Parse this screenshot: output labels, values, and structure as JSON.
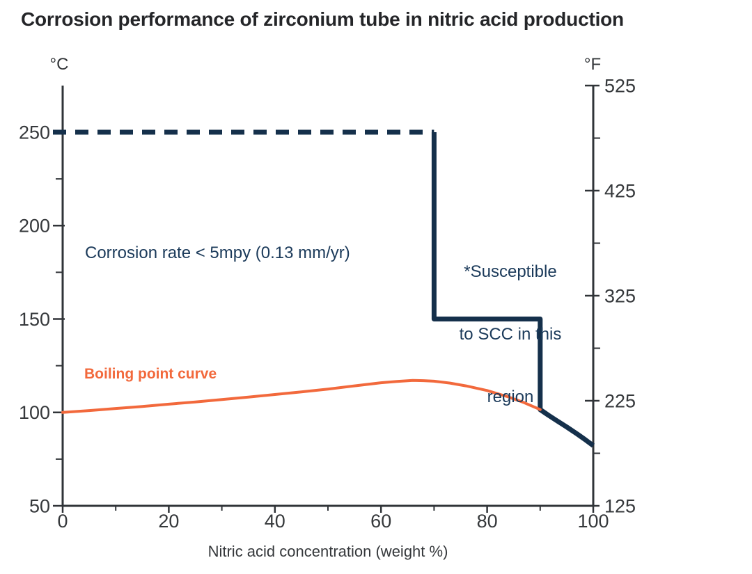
{
  "title": "Corrosion performance of zirconium tube in nitric acid production",
  "colors": {
    "navy": "#15304B",
    "navy_text": "#1B3A5A",
    "orange": "#F2693C",
    "axis": "#303438",
    "tick_label": "#35383B",
    "title_text": "#242528",
    "background": "#FFFFFF"
  },
  "chart_data": {
    "type": "line",
    "title": "Corrosion performance of zirconium tube in nitric acid production",
    "grid": false,
    "x_axis": {
      "label": "Nitric acid concentration (weight %)",
      "range": [
        0,
        100
      ],
      "major_ticks": [
        0,
        20,
        40,
        60,
        80,
        100
      ],
      "minor_ticks": [
        10,
        30,
        50,
        70,
        90
      ]
    },
    "y_axis_left": {
      "label": "°C",
      "range": [
        50,
        275
      ],
      "major_ticks": [
        50,
        100,
        150,
        200,
        250
      ],
      "minor_ticks": [
        75,
        125,
        175,
        225
      ]
    },
    "y_axis_right": {
      "label": "°F",
      "range": [
        125,
        525
      ],
      "major_ticks": [
        125,
        225,
        325,
        425,
        525
      ],
      "minor_ticks": [
        175,
        275,
        375,
        475
      ]
    },
    "series": [
      {
        "name": "corrosion-limit-dashed",
        "label": "Corrosion limit boundary (dashed, 250 °C)",
        "color_key": "navy",
        "width": 7,
        "dash": "19 13",
        "points": [
          [
            0,
            250
          ],
          [
            70,
            250
          ]
        ]
      },
      {
        "name": "corrosion-limit-solid",
        "label": "Corrosion limit boundary (solid)",
        "color_key": "navy",
        "width": 7,
        "dash": null,
        "points": [
          [
            70,
            250
          ],
          [
            70,
            150
          ],
          [
            90,
            150
          ],
          [
            90,
            101.5
          ],
          [
            91.5,
            98.6
          ],
          [
            93,
            95.8
          ],
          [
            95,
            92.2
          ],
          [
            97,
            88.4
          ],
          [
            98.5,
            85.4
          ],
          [
            100,
            82.2
          ]
        ]
      },
      {
        "name": "boiling-point-curve",
        "label": "Boiling point curve",
        "color_key": "orange",
        "width": 4,
        "dash": null,
        "points": [
          [
            0,
            100
          ],
          [
            5,
            101
          ],
          [
            10,
            102.1
          ],
          [
            15,
            103.2
          ],
          [
            20,
            104.4
          ],
          [
            25,
            105.6
          ],
          [
            30,
            106.9
          ],
          [
            35,
            108.2
          ],
          [
            40,
            109.6
          ],
          [
            45,
            111
          ],
          [
            50,
            112.5
          ],
          [
            55,
            114.2
          ],
          [
            60,
            115.9
          ],
          [
            63,
            116.6
          ],
          [
            66,
            117.1
          ],
          [
            68,
            117
          ],
          [
            70,
            116.7
          ],
          [
            73,
            115.7
          ],
          [
            76,
            114.2
          ],
          [
            80,
            111.7
          ],
          [
            84,
            108.3
          ],
          [
            87,
            105.2
          ],
          [
            90,
            101.5
          ]
        ]
      }
    ],
    "annotations": [
      {
        "name": "corrosion-rate-note",
        "text": "Corrosion rate < 5mpy (0.13 mm/yr)"
      },
      {
        "name": "scc-note",
        "lines": [
          "*Susceptible",
          "to SCC in this",
          "region"
        ]
      },
      {
        "name": "boiling-point-label",
        "text": "Boiling point curve"
      }
    ]
  }
}
